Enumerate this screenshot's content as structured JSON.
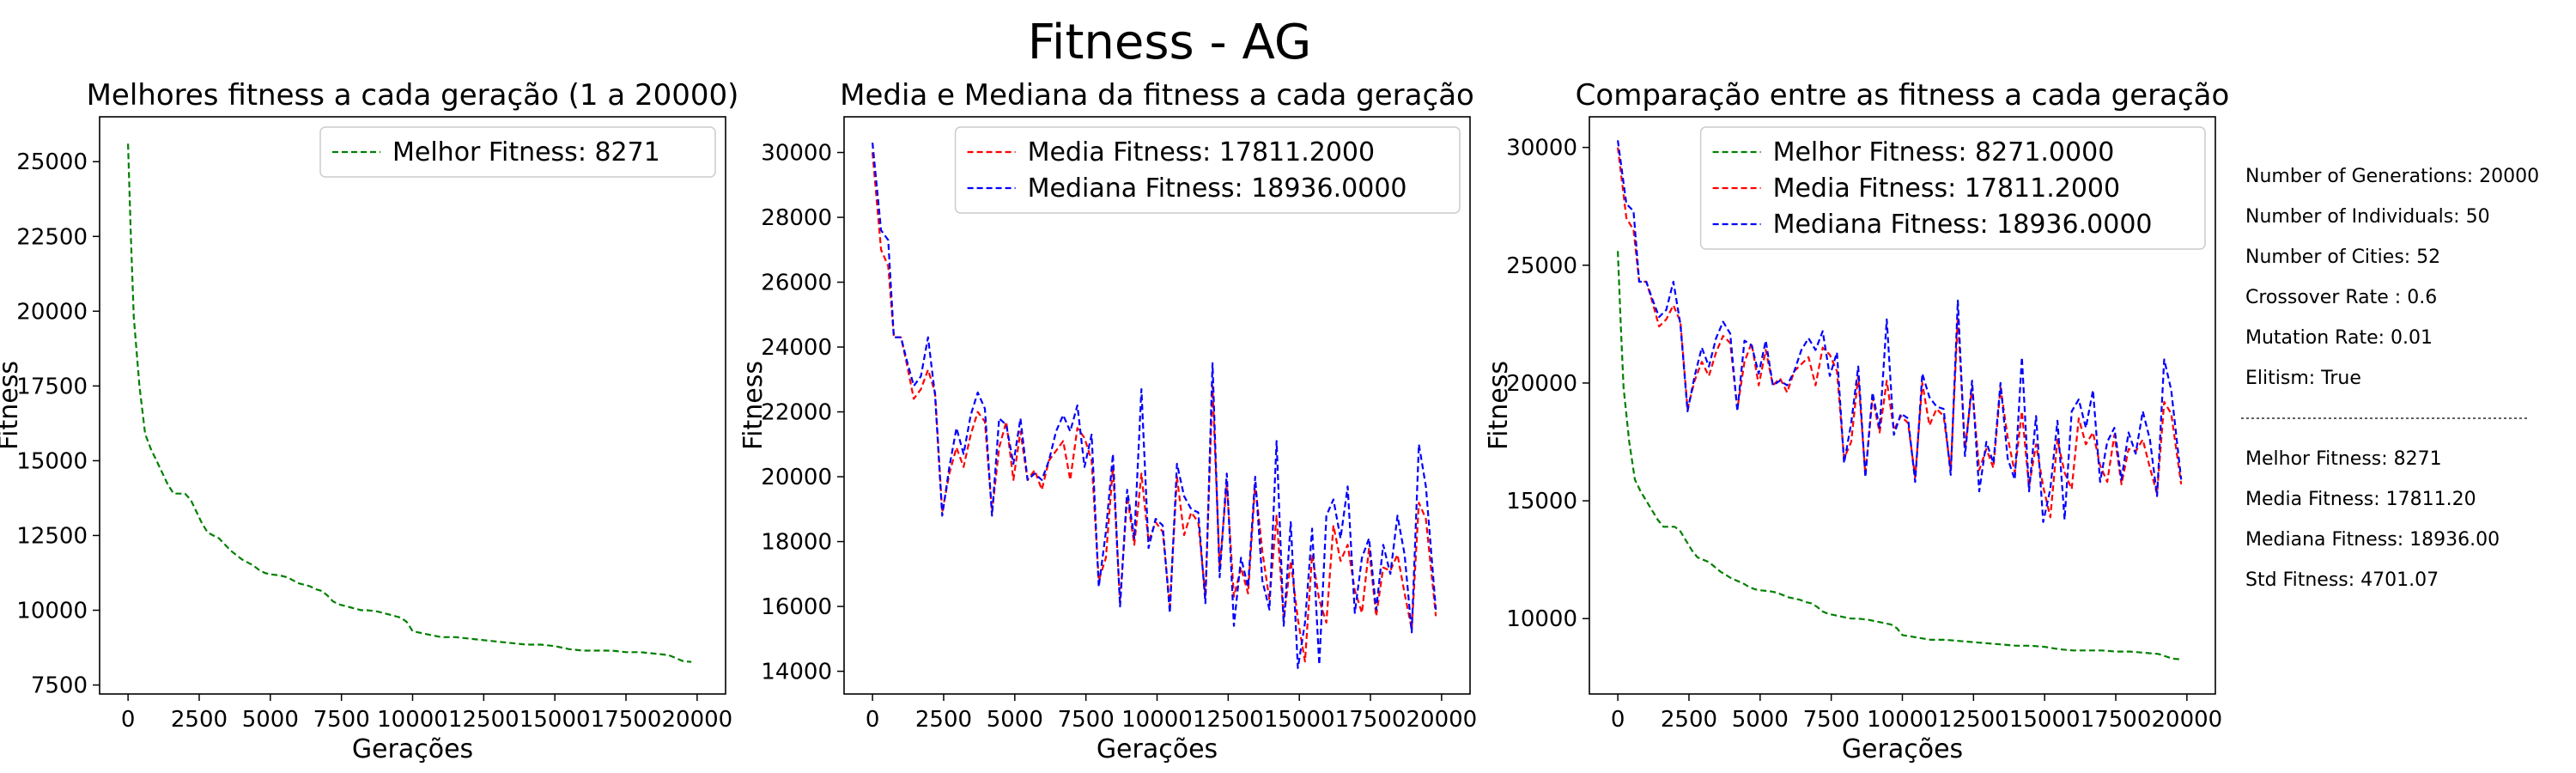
{
  "figure": {
    "suptitle": "Fitness - AG",
    "info": {
      "lines_top": [
        "Number of Generations: 20000",
        "Number of Individuals: 50",
        "Number of Cities: 52",
        "Crossover Rate : 0.6",
        "Mutation Rate: 0.01",
        "Elitism: True"
      ],
      "lines_bottom": [
        "Melhor Fitness: 8271",
        "Media Fitness: 17811.20",
        "Mediana Fitness: 18936.00",
        "Std Fitness: 4701.07"
      ]
    }
  },
  "series_data": {
    "best_x": [
      0,
      100,
      200,
      400,
      600,
      800,
      1000,
      1200,
      1400,
      1600,
      1800,
      2000,
      2200,
      2400,
      2600,
      2800,
      3000,
      3200,
      3400,
      3600,
      3800,
      4000,
      4200,
      4400,
      4600,
      4800,
      5000,
      5200,
      5400,
      5600,
      5800,
      6000,
      6200,
      6400,
      6600,
      6800,
      7000,
      7200,
      7400,
      7600,
      7800,
      8000,
      8200,
      8400,
      8600,
      8800,
      9000,
      9200,
      9400,
      9600,
      9800,
      10000,
      10500,
      11000,
      11500,
      12000,
      12500,
      13000,
      13500,
      14000,
      14500,
      15000,
      15500,
      16000,
      16500,
      17000,
      17500,
      18000,
      18500,
      19000,
      19500,
      19800
    ],
    "best_y": [
      25600,
      22500,
      19800,
      17500,
      15900,
      15400,
      15000,
      14600,
      14200,
      13900,
      13900,
      13900,
      13700,
      13300,
      12900,
      12600,
      12500,
      12400,
      12200,
      12000,
      11850,
      11700,
      11600,
      11500,
      11350,
      11250,
      11200,
      11180,
      11150,
      11100,
      11000,
      10900,
      10850,
      10800,
      10700,
      10650,
      10500,
      10300,
      10200,
      10150,
      10100,
      10050,
      10000,
      10000,
      9980,
      9950,
      9900,
      9850,
      9800,
      9750,
      9600,
      9300,
      9200,
      9100,
      9100,
      9050,
      9000,
      8950,
      8900,
      8850,
      8850,
      8800,
      8700,
      8650,
      8650,
      8650,
      8600,
      8600,
      8550,
      8500,
      8300,
      8271
    ],
    "gen": [
      0,
      300,
      550,
      750,
      1000,
      1200,
      1450,
      1700,
      1950,
      2200,
      2450,
      2700,
      2950,
      3200,
      3450,
      3700,
      3950,
      4200,
      4450,
      4700,
      4950,
      5200,
      5450,
      5700,
      5950,
      6200,
      6450,
      6700,
      6950,
      7200,
      7450,
      7700,
      7950,
      8200,
      8450,
      8700,
      8950,
      9200,
      9450,
      9700,
      9950,
      10200,
      10450,
      10700,
      10950,
      11200,
      11450,
      11700,
      11950,
      12200,
      12450,
      12700,
      12950,
      13200,
      13450,
      13700,
      13950,
      14200,
      14450,
      14700,
      14950,
      15200,
      15450,
      15700,
      15950,
      16200,
      16450,
      16700,
      16950,
      17200,
      17450,
      17700,
      17950,
      18200,
      18450,
      18700,
      18950,
      19200,
      19450,
      19800
    ],
    "media": [
      30000,
      27000,
      26500,
      24300,
      24300,
      23500,
      22400,
      22700,
      23300,
      22600,
      18900,
      20100,
      20900,
      20300,
      21300,
      22000,
      21700,
      18900,
      20900,
      21700,
      19900,
      21400,
      19900,
      20200,
      19600,
      20500,
      20800,
      21100,
      19900,
      21500,
      21200,
      20500,
      16800,
      17500,
      20300,
      16100,
      19400,
      17900,
      20100,
      18000,
      18600,
      18300,
      16000,
      20000,
      18200,
      18900,
      18600,
      16300,
      22800,
      17200,
      19800,
      16300,
      17200,
      16400,
      19800,
      17700,
      16200,
      18800,
      15600,
      17400,
      15600,
      14300,
      17600,
      16200,
      15500,
      18500,
      17400,
      17900,
      16500,
      15800,
      17800,
      15700,
      17200,
      17100,
      17600,
      16400,
      15300,
      19200,
      18700,
      15700
    ],
    "mediana": [
      30300,
      27600,
      27300,
      24300,
      24300,
      23600,
      22800,
      23100,
      24300,
      22500,
      18800,
      20300,
      21500,
      20700,
      21900,
      22600,
      22100,
      18800,
      21800,
      21600,
      20400,
      21800,
      19900,
      20100,
      19900,
      20500,
      21400,
      21900,
      21400,
      22200,
      20300,
      21300,
      16600,
      18300,
      20700,
      16000,
      19600,
      18100,
      22700,
      17800,
      18700,
      18500,
      15800,
      20400,
      19400,
      19000,
      18900,
      16100,
      23500,
      16900,
      20100,
      15400,
      17500,
      16600,
      20000,
      16800,
      15900,
      21100,
      15400,
      18600,
      14100,
      15500,
      18400,
      14200,
      18800,
      19300,
      18100,
      19700,
      15800,
      17500,
      18100,
      15900,
      17900,
      17000,
      18800,
      17600,
      15200,
      21000,
      19700,
      15900
    ]
  },
  "charts": [
    {
      "title": "Melhores fitness a cada geração (1 a 20000)",
      "xlabel": "Gerações",
      "ylabel": "Fitness",
      "xticks": [
        0,
        2500,
        5000,
        7500,
        10000,
        12500,
        15000,
        17500,
        20000
      ],
      "yticks": [
        7500,
        10000,
        12500,
        15000,
        17500,
        20000,
        22500,
        25000
      ],
      "xlim": [
        -1000,
        21000
      ],
      "ylim": [
        7200,
        26500
      ],
      "legend_loc": "upper right",
      "series": [
        {
          "name": "Melhor Fitness: 8271",
          "color": "#008000",
          "x_key": "best_x",
          "y_key": "best_y"
        }
      ]
    },
    {
      "title": "Media e Mediana da fitness a cada geração",
      "xlabel": "Gerações",
      "ylabel": "Fitness",
      "xticks": [
        0,
        2500,
        5000,
        7500,
        10000,
        12500,
        15000,
        17500,
        20000
      ],
      "yticks": [
        14000,
        16000,
        18000,
        20000,
        22000,
        24000,
        26000,
        28000,
        30000
      ],
      "xlim": [
        -1000,
        21000
      ],
      "ylim": [
        13300,
        31100
      ],
      "legend_loc": "upper right",
      "series": [
        {
          "name": "Media Fitness: 17811.2000",
          "color": "#ff0000",
          "x_key": "gen",
          "y_key": "media"
        },
        {
          "name": "Mediana Fitness: 18936.0000",
          "color": "#0000ff",
          "x_key": "gen",
          "y_key": "mediana"
        }
      ]
    },
    {
      "title": "Comparação entre as fitness a cada geração",
      "xlabel": "Gerações",
      "ylabel": "Fitness",
      "xticks": [
        0,
        2500,
        5000,
        7500,
        10000,
        12500,
        15000,
        17500,
        20000
      ],
      "yticks": [
        10000,
        15000,
        20000,
        25000,
        30000
      ],
      "xlim": [
        -1000,
        21000
      ],
      "ylim": [
        6800,
        31300
      ],
      "legend_loc": "upper right",
      "series": [
        {
          "name": "Melhor Fitness: 8271.0000",
          "color": "#008000",
          "x_key": "best_x",
          "y_key": "best_y"
        },
        {
          "name": "Media Fitness: 17811.2000",
          "color": "#ff0000",
          "x_key": "gen",
          "y_key": "media"
        },
        {
          "name": "Mediana Fitness: 18936.0000",
          "color": "#0000ff",
          "x_key": "gen",
          "y_key": "mediana"
        }
      ]
    }
  ],
  "chart_data": [
    {
      "type": "line",
      "title": "Melhores fitness a cada geração (1 a 20000)",
      "xlabel": "Gerações",
      "ylabel": "Fitness",
      "xlim": [
        -1000,
        21000
      ],
      "ylim": [
        7200,
        26500
      ],
      "legend": "upper right",
      "series": [
        {
          "name": "Melhor Fitness: 8271",
          "x": "series_data.best_x",
          "y": "series_data.best_y"
        }
      ]
    },
    {
      "type": "line",
      "title": "Media e Mediana da fitness a cada geração",
      "xlabel": "Gerações",
      "ylabel": "Fitness",
      "xlim": [
        -1000,
        21000
      ],
      "ylim": [
        13300,
        31100
      ],
      "legend": "upper right",
      "series": [
        {
          "name": "Media Fitness: 17811.2000",
          "x": "series_data.gen",
          "y": "series_data.media"
        },
        {
          "name": "Mediana Fitness: 18936.0000",
          "x": "series_data.gen",
          "y": "series_data.mediana"
        }
      ]
    },
    {
      "type": "line",
      "title": "Comparação entre as fitness a cada geração",
      "xlabel": "Gerações",
      "ylabel": "Fitness",
      "xlim": [
        -1000,
        21000
      ],
      "ylim": [
        6800,
        31300
      ],
      "legend": "upper right",
      "series": [
        {
          "name": "Melhor Fitness: 8271.0000",
          "x": "series_data.best_x",
          "y": "series_data.best_y"
        },
        {
          "name": "Media Fitness: 17811.2000",
          "x": "series_data.gen",
          "y": "series_data.media"
        },
        {
          "name": "Mediana Fitness: 18936.0000",
          "x": "series_data.gen",
          "y": "series_data.mediana"
        }
      ]
    }
  ]
}
